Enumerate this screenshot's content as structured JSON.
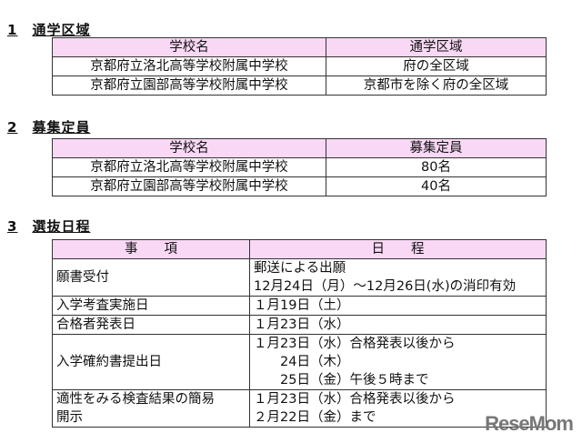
{
  "s1": {
    "num": "1",
    "title": "通学区域",
    "headers": [
      "学校名",
      "通学区域"
    ],
    "rows": [
      [
        "京都府立洛北高等学校附属中学校",
        "府の全区域"
      ],
      [
        "京都府立園部高等学校附属中学校",
        "京都市を除く府の全区域"
      ]
    ]
  },
  "s2": {
    "num": "2",
    "title": "募集定員",
    "headers": [
      "学校名",
      "募集定員"
    ],
    "rows": [
      [
        "京都府立洛北高等学校附属中学校",
        "80名"
      ],
      [
        "京都府立園部高等学校附属中学校",
        "40名"
      ]
    ]
  },
  "s3": {
    "num": "3",
    "title": "選抜日程",
    "headers": [
      "事　　項",
      "日　　程"
    ],
    "rows": [
      {
        "item": "願書受付",
        "lines": [
          "郵送による出願",
          "12月24日（月）～12月26日(水)の消印有効"
        ]
      },
      {
        "item": "入学考査実施日",
        "lines": [
          "１月19日（土）"
        ]
      },
      {
        "item": "合格者発表日",
        "lines": [
          "１月23日（水）"
        ]
      },
      {
        "item": "入学確約書提出日",
        "lines": [
          "１月23日（水）合格発表以後から",
          "　　24日（木）",
          "　　25日（金）午後５時まで"
        ]
      },
      {
        "item": "適性をみる検査結果の簡易開示",
        "item_lines": [
          "適性をみる検査結果の簡易",
          "開示"
        ],
        "lines": [
          "１月23日（水）合格発表以後から",
          "２月22日（金）まで"
        ]
      }
    ]
  },
  "logo": "ReseMom"
}
